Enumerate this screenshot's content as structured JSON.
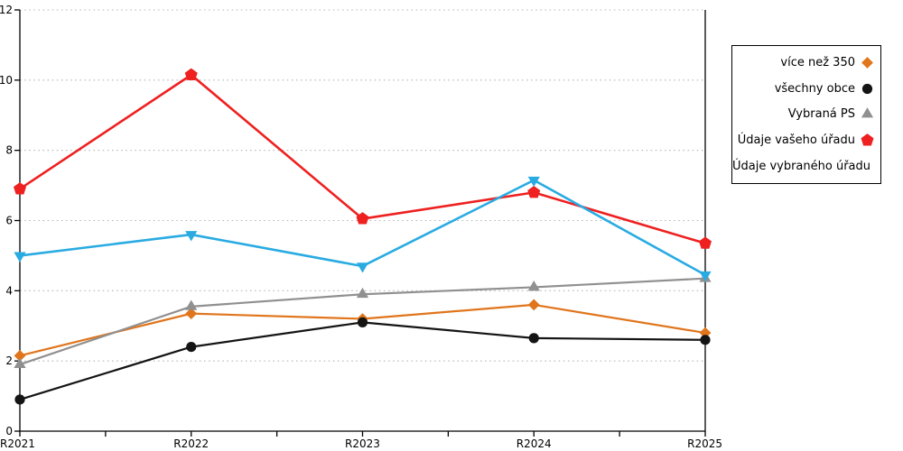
{
  "chart_data": {
    "type": "line",
    "categories": [
      "R2021",
      "R2022",
      "R2023",
      "R2024",
      "R2025"
    ],
    "series": [
      {
        "name": "více než 350",
        "color": "#e0751c",
        "marker": "diamond",
        "line_width": 2.2,
        "values": [
          2.15,
          3.35,
          3.2,
          3.6,
          2.8
        ]
      },
      {
        "name": "všechny obce",
        "color": "#141414",
        "marker": "circle",
        "line_width": 2.2,
        "values": [
          0.9,
          2.4,
          3.1,
          2.65,
          2.6
        ]
      },
      {
        "name": "Vybraná PS",
        "color": "#909090",
        "marker": "triangle-up",
        "line_width": 2.2,
        "values": [
          1.9,
          3.55,
          3.9,
          4.1,
          4.35
        ]
      },
      {
        "name": "Údaje vašeho úřadu",
        "color": "#ee2020",
        "marker": "pentagon",
        "line_width": 2.6,
        "values": [
          6.9,
          10.15,
          6.05,
          6.8,
          5.35
        ]
      },
      {
        "name": "Údaje vybraného úřadu",
        "color": "#29abe2",
        "marker": "triangle-down",
        "line_width": 2.6,
        "values": [
          5.0,
          5.6,
          4.7,
          7.15,
          4.45
        ]
      }
    ],
    "title": "",
    "xlabel": "",
    "ylabel": "",
    "ylim": [
      0,
      12
    ],
    "yticks": [
      0,
      2,
      4,
      6,
      8,
      10,
      12
    ],
    "x_minor_ticks": true,
    "grid": true,
    "grid_style": "dotted",
    "grid_color": "#b3b3b3",
    "axis_color": "#000000",
    "legend_position": "right"
  }
}
